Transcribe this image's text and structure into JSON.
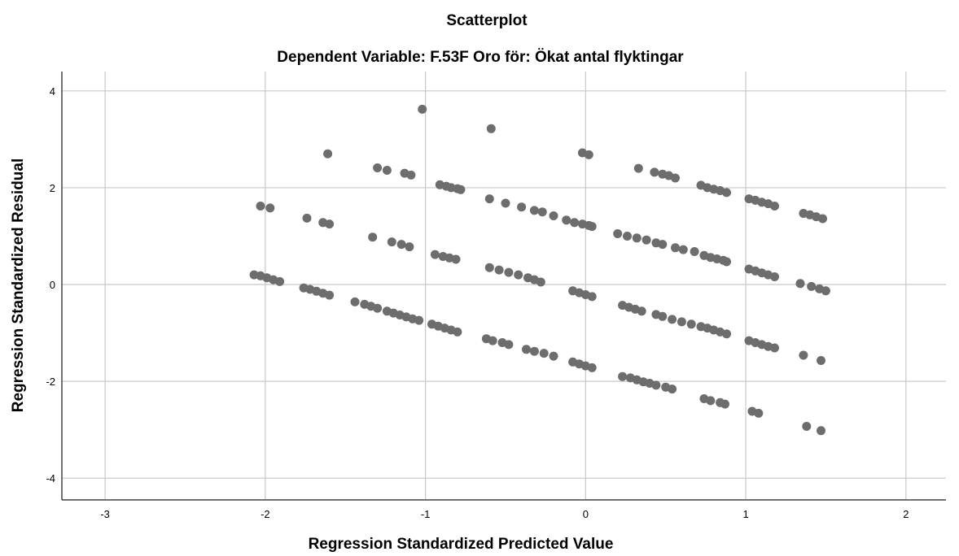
{
  "chart_data": {
    "type": "scatter",
    "title": "Scatterplot",
    "subtitle": "Dependent Variable: F.53F Oro för: Ökat antal flyktingar",
    "xlabel": "Regression Standardized Predicted Value",
    "ylabel": "Regression Standardized Residual",
    "xlim": [
      -3.27,
      2.25
    ],
    "ylim": [
      -4.45,
      4.4
    ],
    "xticks": [
      -3,
      -2,
      -1,
      0,
      1,
      2
    ],
    "yticks": [
      -4,
      -2,
      0,
      2,
      4
    ],
    "grid": true,
    "marker_color": "#6d6d6d",
    "points": [
      [
        -1.02,
        3.62
      ],
      [
        -0.59,
        3.22
      ],
      [
        -1.61,
        2.7
      ],
      [
        -0.02,
        2.72
      ],
      [
        0.02,
        2.68
      ],
      [
        -1.3,
        2.41
      ],
      [
        -1.24,
        2.36
      ],
      [
        -1.13,
        2.3
      ],
      [
        -1.09,
        2.26
      ],
      [
        -0.91,
        2.06
      ],
      [
        -0.87,
        2.03
      ],
      [
        -0.84,
        2.0
      ],
      [
        -0.8,
        1.98
      ],
      [
        -0.78,
        1.96
      ],
      [
        0.33,
        2.4
      ],
      [
        0.43,
        2.32
      ],
      [
        0.48,
        2.28
      ],
      [
        0.52,
        2.25
      ],
      [
        0.56,
        2.2
      ],
      [
        0.72,
        2.05
      ],
      [
        0.76,
        2.0
      ],
      [
        0.8,
        1.97
      ],
      [
        0.84,
        1.94
      ],
      [
        0.88,
        1.9
      ],
      [
        1.02,
        1.77
      ],
      [
        1.06,
        1.74
      ],
      [
        1.1,
        1.7
      ],
      [
        1.14,
        1.67
      ],
      [
        1.18,
        1.62
      ],
      [
        1.36,
        1.47
      ],
      [
        1.4,
        1.44
      ],
      [
        1.44,
        1.4
      ],
      [
        1.48,
        1.36
      ],
      [
        -2.03,
        1.62
      ],
      [
        -1.97,
        1.58
      ],
      [
        -1.74,
        1.37
      ],
      [
        -1.64,
        1.28
      ],
      [
        -1.6,
        1.25
      ],
      [
        -1.33,
        0.98
      ],
      [
        -1.21,
        0.88
      ],
      [
        -1.15,
        0.83
      ],
      [
        -1.1,
        0.78
      ],
      [
        -0.94,
        0.62
      ],
      [
        -0.89,
        0.58
      ],
      [
        -0.85,
        0.55
      ],
      [
        -0.81,
        0.52
      ],
      [
        -0.6,
        1.77
      ],
      [
        -0.5,
        1.68
      ],
      [
        -0.4,
        1.6
      ],
      [
        -0.32,
        1.53
      ],
      [
        -0.27,
        1.5
      ],
      [
        -0.2,
        1.42
      ],
      [
        -0.12,
        1.33
      ],
      [
        -0.07,
        1.28
      ],
      [
        -0.02,
        1.25
      ],
      [
        0.02,
        1.22
      ],
      [
        0.04,
        1.2
      ],
      [
        0.2,
        1.05
      ],
      [
        0.26,
        1.0
      ],
      [
        0.32,
        0.96
      ],
      [
        0.38,
        0.92
      ],
      [
        0.44,
        0.86
      ],
      [
        0.48,
        0.83
      ],
      [
        0.56,
        0.76
      ],
      [
        0.61,
        0.72
      ],
      [
        0.68,
        0.68
      ],
      [
        0.74,
        0.6
      ],
      [
        0.78,
        0.56
      ],
      [
        0.82,
        0.53
      ],
      [
        0.86,
        0.5
      ],
      [
        0.88,
        0.47
      ],
      [
        1.02,
        0.32
      ],
      [
        1.06,
        0.28
      ],
      [
        1.1,
        0.24
      ],
      [
        1.14,
        0.2
      ],
      [
        1.18,
        0.16
      ],
      [
        1.34,
        0.02
      ],
      [
        1.41,
        -0.04
      ],
      [
        1.46,
        -0.09
      ],
      [
        1.5,
        -0.13
      ],
      [
        -0.6,
        0.35
      ],
      [
        -0.54,
        0.3
      ],
      [
        -0.48,
        0.25
      ],
      [
        -0.42,
        0.2
      ],
      [
        -0.36,
        0.14
      ],
      [
        -0.32,
        0.1
      ],
      [
        -0.28,
        0.05
      ],
      [
        -2.07,
        0.2
      ],
      [
        -2.03,
        0.18
      ],
      [
        -1.99,
        0.14
      ],
      [
        -1.95,
        0.1
      ],
      [
        -1.91,
        0.06
      ],
      [
        -1.76,
        -0.07
      ],
      [
        -1.72,
        -0.1
      ],
      [
        -1.68,
        -0.14
      ],
      [
        -1.64,
        -0.18
      ],
      [
        -1.6,
        -0.22
      ],
      [
        -1.44,
        -0.36
      ],
      [
        -1.38,
        -0.41
      ],
      [
        -1.34,
        -0.45
      ],
      [
        -1.3,
        -0.49
      ],
      [
        -1.24,
        -0.55
      ],
      [
        -1.2,
        -0.59
      ],
      [
        -1.16,
        -0.63
      ],
      [
        -1.12,
        -0.67
      ],
      [
        -1.08,
        -0.71
      ],
      [
        -1.04,
        -0.74
      ],
      [
        -0.96,
        -0.82
      ],
      [
        -0.92,
        -0.86
      ],
      [
        -0.88,
        -0.9
      ],
      [
        -0.84,
        -0.94
      ],
      [
        -0.8,
        -0.98
      ],
      [
        -0.62,
        -1.12
      ],
      [
        -0.58,
        -1.16
      ],
      [
        -0.52,
        -1.2
      ],
      [
        -0.48,
        -1.24
      ],
      [
        -0.37,
        -1.34
      ],
      [
        -0.32,
        -1.38
      ],
      [
        -0.26,
        -1.42
      ],
      [
        -0.2,
        -1.48
      ],
      [
        -0.08,
        -0.13
      ],
      [
        -0.04,
        -0.17
      ],
      [
        0.0,
        -0.21
      ],
      [
        0.04,
        -0.25
      ],
      [
        0.23,
        -0.43
      ],
      [
        0.27,
        -0.47
      ],
      [
        0.31,
        -0.51
      ],
      [
        0.35,
        -0.55
      ],
      [
        0.44,
        -0.62
      ],
      [
        0.48,
        -0.66
      ],
      [
        0.54,
        -0.72
      ],
      [
        0.6,
        -0.77
      ],
      [
        0.66,
        -0.82
      ],
      [
        0.72,
        -0.87
      ],
      [
        0.76,
        -0.9
      ],
      [
        0.8,
        -0.94
      ],
      [
        0.84,
        -0.98
      ],
      [
        0.88,
        -1.02
      ],
      [
        1.02,
        -1.16
      ],
      [
        1.06,
        -1.2
      ],
      [
        1.1,
        -1.24
      ],
      [
        1.14,
        -1.28
      ],
      [
        1.18,
        -1.31
      ],
      [
        1.36,
        -1.46
      ],
      [
        1.47,
        -1.57
      ],
      [
        -0.08,
        -1.6
      ],
      [
        -0.04,
        -1.64
      ],
      [
        0.0,
        -1.68
      ],
      [
        0.04,
        -1.72
      ],
      [
        0.23,
        -1.9
      ],
      [
        0.28,
        -1.93
      ],
      [
        0.32,
        -1.97
      ],
      [
        0.36,
        -2.01
      ],
      [
        0.4,
        -2.04
      ],
      [
        0.44,
        -2.08
      ],
      [
        0.5,
        -2.12
      ],
      [
        0.54,
        -2.16
      ],
      [
        0.74,
        -2.36
      ],
      [
        0.78,
        -2.4
      ],
      [
        0.84,
        -2.44
      ],
      [
        0.87,
        -2.47
      ],
      [
        1.04,
        -2.62
      ],
      [
        1.08,
        -2.66
      ],
      [
        1.38,
        -2.93
      ],
      [
        1.47,
        -3.02
      ]
    ]
  }
}
